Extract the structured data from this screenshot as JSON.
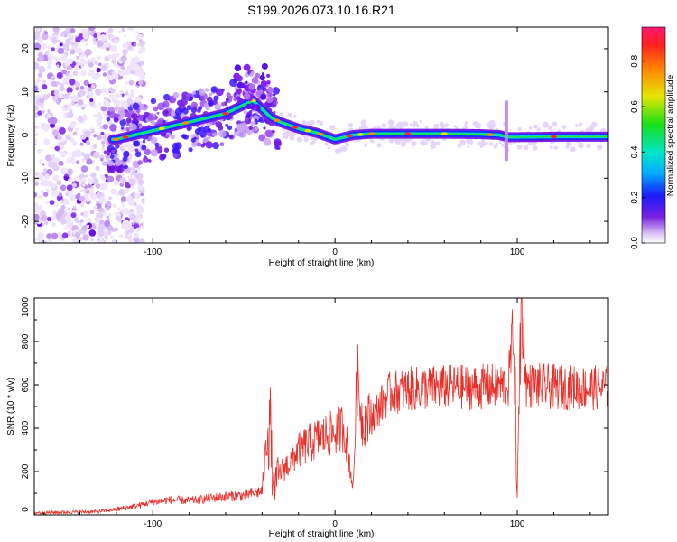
{
  "title": "S199.2026.073.10.16.R21",
  "chart_data": [
    {
      "type": "heatmap",
      "name": "spectrogram",
      "xlabel": "Height of straight line (km)",
      "ylabel": "Frequency (Hz)",
      "xlim": [
        -165,
        150
      ],
      "ylim": [
        -25,
        25
      ],
      "xticks": [
        -100,
        0,
        100
      ],
      "yticks": [
        -20,
        -10,
        0,
        10,
        20
      ],
      "colorbar": {
        "label": "Normalized spectral amplitude",
        "range": [
          0,
          0.95
        ],
        "ticks": [
          0.0,
          0.2,
          0.4,
          0.6,
          0.8
        ],
        "tick_labels": [
          "0.0",
          "0.2",
          "0.4",
          "0.6",
          "0.8"
        ]
      },
      "ridge": {
        "x": [
          -120,
          -100,
          -80,
          -60,
          -45,
          -40,
          -35,
          -30,
          -20,
          -10,
          0,
          10,
          20,
          40,
          60,
          80,
          90,
          95,
          100,
          120,
          150
        ],
        "y": [
          -1,
          1,
          3,
          5,
          8,
          6,
          4,
          3,
          1.5,
          0.5,
          -1,
          0,
          0.3,
          0.3,
          0.3,
          0.2,
          0,
          -0.5,
          -0.5,
          -0.4,
          -0.4
        ]
      }
    },
    {
      "type": "line",
      "name": "snr",
      "xlabel": "Height of straight line (km)",
      "ylabel": "SNR (10 * v/v)",
      "xlim": [
        -165,
        150
      ],
      "ylim": [
        0,
        1000
      ],
      "xticks": [
        -100,
        0,
        100
      ],
      "yticks": [
        0,
        200,
        400,
        600,
        800,
        1000
      ],
      "series": [
        {
          "name": "SNR",
          "color": "#e8302a",
          "x": [
            -165,
            -150,
            -130,
            -120,
            -110,
            -100,
            -90,
            -80,
            -70,
            -60,
            -50,
            -40,
            -36,
            -34,
            -30,
            -25,
            -20,
            -10,
            0,
            5,
            10,
            12,
            15,
            20,
            30,
            40,
            60,
            80,
            95,
            98,
            100,
            102,
            105,
            120,
            150
          ],
          "y": [
            10,
            12,
            15,
            25,
            40,
            60,
            70,
            65,
            75,
            85,
            90,
            110,
            480,
            120,
            200,
            240,
            300,
            350,
            380,
            410,
            120,
            650,
            430,
            450,
            560,
            580,
            590,
            590,
            600,
            880,
            70,
            1000,
            600,
            590,
            585
          ]
        }
      ]
    }
  ]
}
